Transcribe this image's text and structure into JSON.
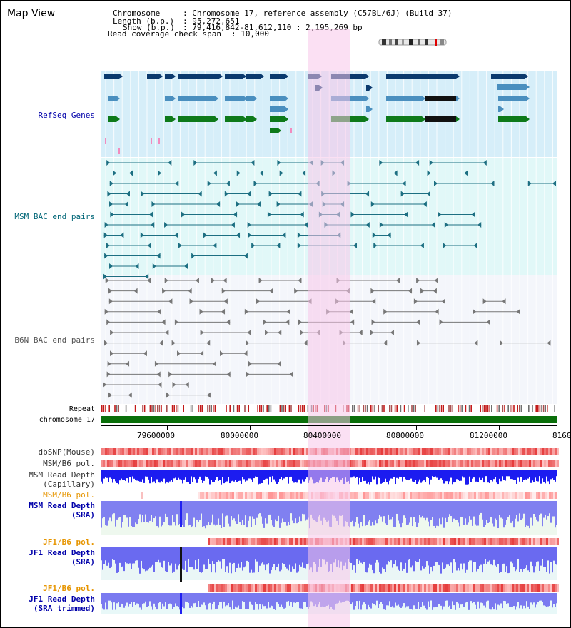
{
  "page": {
    "title": "Map View"
  },
  "header": {
    "chromosome_key": "Chromosome",
    "chromosome_val": ": Chromosome 17, reference assembly (C57BL/6J) (Build 37)",
    "length_key": "Length (b.p.)",
    "length_val": ": 95,272,651",
    "show_key": "Show (b.p.)",
    "show_val": ": 79,416,842-81,612,110 : 2,195,269 bp",
    "coverage_key": "Read coverage check span",
    "coverage_val": ": 10,000"
  },
  "tracks": {
    "refseq": "RefSeq Genes",
    "msm_bac": "MSM BAC end pairs",
    "b6n_bac": "B6N BAC end pairs",
    "repeat": "Repeat",
    "chromosome": "chromosome 17",
    "dbsnp": "dbSNP(Mouse)",
    "msm_b6_pol": "MSM/B6 pol.",
    "msm_depth_cap_1": "MSM Read Depth",
    "msm_depth_cap_2": "(Capillary)",
    "msm_b6_pol_2": "MSM/B6 pol.",
    "msm_depth_sra_1": "MSM Read Depth",
    "msm_depth_sra_2": "(SRA)",
    "jf1_b6_pol": "JF1/B6 pol.",
    "jf1_depth_sra_1": "JF1 Read Depth",
    "jf1_depth_sra_2": "(SRA)",
    "jf1_b6_pol_2": "JF1/B6 pol.",
    "jf1_depth_trim_1": "JF1 Read Depth",
    "jf1_depth_trim_2": "(SRA trimmed)"
  },
  "axis": {
    "ticks": [
      "79600000",
      "80000000",
      "80400000",
      "80800000",
      "81200000",
      "8160"
    ]
  },
  "colors": {
    "refseq_label": "#0000aa",
    "msm_label": "#006677",
    "b6n_label": "#555555",
    "orange_label": "#e69500",
    "blue_label": "#0000aa",
    "highlight": "#f7d6ef",
    "refseq_bg": "#d6eef9",
    "msm_bg": "#e1f8f8",
    "b6n_bg": "#f4f6fb",
    "chromosome_bar": "#0a6f0a"
  }
}
